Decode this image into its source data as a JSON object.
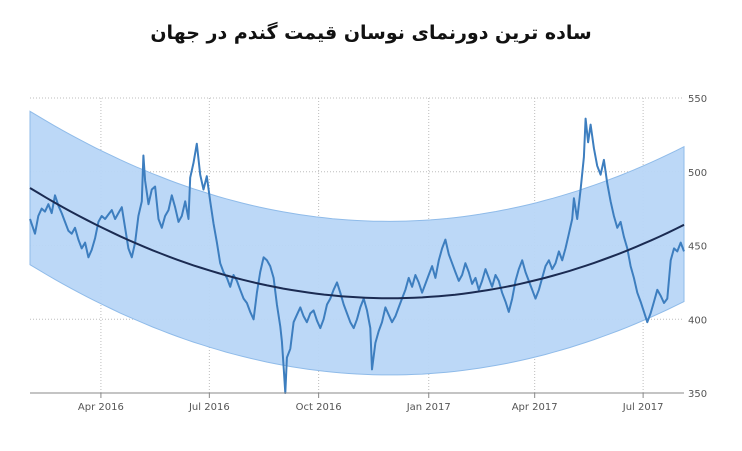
{
  "chart_data": {
    "type": "line",
    "title": "ساده ترین دورنمای نوسان قیمت گندم در جهان",
    "x_tick_labels": [
      "Apr 2016",
      "Jul 2016",
      "Oct 2016",
      "Jan 2017",
      "Apr 2017",
      "Jul 2017"
    ],
    "y_tick_labels": [
      "550",
      "500",
      "450",
      "400",
      "350"
    ],
    "ylim": [
      350,
      550
    ],
    "grid": true,
    "y_axis_side": "right",
    "series": [
      {
        "kind": "price",
        "color": "#3d7ebf",
        "points": [
          [
            0.0,
            468
          ],
          [
            0.6,
            458
          ],
          [
            1.0,
            470
          ],
          [
            1.4,
            475
          ],
          [
            1.8,
            473
          ],
          [
            2.2,
            478
          ],
          [
            2.6,
            472
          ],
          [
            3.0,
            484
          ],
          [
            3.4,
            477
          ],
          [
            3.8,
            472
          ],
          [
            4.2,
            466
          ],
          [
            4.6,
            460
          ],
          [
            5.0,
            458
          ],
          [
            5.4,
            462
          ],
          [
            5.8,
            454
          ],
          [
            6.2,
            448
          ],
          [
            6.6,
            452
          ],
          [
            7.0,
            442
          ],
          [
            7.4,
            447
          ],
          [
            7.8,
            455
          ],
          [
            8.2,
            466
          ],
          [
            8.6,
            470
          ],
          [
            9.0,
            468
          ],
          [
            9.4,
            471
          ],
          [
            9.8,
            474
          ],
          [
            10.2,
            468
          ],
          [
            10.6,
            472
          ],
          [
            11.0,
            476
          ],
          [
            11.4,
            462
          ],
          [
            11.8,
            448
          ],
          [
            12.2,
            442
          ],
          [
            12.6,
            452
          ],
          [
            13.0,
            470
          ],
          [
            13.4,
            480
          ],
          [
            13.6,
            511
          ],
          [
            13.8,
            494
          ],
          [
            14.2,
            478
          ],
          [
            14.6,
            488
          ],
          [
            15.0,
            490
          ],
          [
            15.4,
            468
          ],
          [
            15.8,
            462
          ],
          [
            16.2,
            470
          ],
          [
            16.6,
            474
          ],
          [
            17.0,
            484
          ],
          [
            17.4,
            476
          ],
          [
            17.8,
            466
          ],
          [
            18.2,
            470
          ],
          [
            18.6,
            480
          ],
          [
            19.0,
            468
          ],
          [
            19.2,
            496
          ],
          [
            19.6,
            506
          ],
          [
            20.0,
            519
          ],
          [
            20.4,
            498
          ],
          [
            20.8,
            488
          ],
          [
            21.2,
            497
          ],
          [
            21.6,
            480
          ],
          [
            22.0,
            465
          ],
          [
            22.4,
            452
          ],
          [
            22.8,
            438
          ],
          [
            23.2,
            432
          ],
          [
            23.6,
            428
          ],
          [
            24.0,
            422
          ],
          [
            24.4,
            430
          ],
          [
            24.8,
            426
          ],
          [
            25.2,
            420
          ],
          [
            25.6,
            414
          ],
          [
            26.0,
            411
          ],
          [
            26.4,
            405
          ],
          [
            26.8,
            400
          ],
          [
            27.2,
            418
          ],
          [
            27.6,
            432
          ],
          [
            28.0,
            442
          ],
          [
            28.4,
            440
          ],
          [
            28.8,
            436
          ],
          [
            29.2,
            428
          ],
          [
            29.6,
            410
          ],
          [
            30.0,
            395
          ],
          [
            30.2,
            385
          ],
          [
            30.4,
            368
          ],
          [
            30.6,
            350
          ],
          [
            30.8,
            374
          ],
          [
            31.2,
            380
          ],
          [
            31.6,
            398
          ],
          [
            32.0,
            403
          ],
          [
            32.4,
            408
          ],
          [
            32.8,
            402
          ],
          [
            33.2,
            398
          ],
          [
            33.6,
            404
          ],
          [
            34.0,
            406
          ],
          [
            34.4,
            399
          ],
          [
            34.8,
            394
          ],
          [
            35.2,
            400
          ],
          [
            35.6,
            410
          ],
          [
            36.0,
            414
          ],
          [
            36.4,
            420
          ],
          [
            36.8,
            425
          ],
          [
            37.2,
            418
          ],
          [
            37.6,
            410
          ],
          [
            38.0,
            404
          ],
          [
            38.4,
            398
          ],
          [
            38.8,
            394
          ],
          [
            39.2,
            400
          ],
          [
            39.6,
            408
          ],
          [
            40.0,
            414
          ],
          [
            40.4,
            406
          ],
          [
            40.8,
            394
          ],
          [
            41.0,
            366
          ],
          [
            41.4,
            384
          ],
          [
            41.8,
            392
          ],
          [
            42.2,
            398
          ],
          [
            42.6,
            408
          ],
          [
            43.0,
            403
          ],
          [
            43.4,
            398
          ],
          [
            43.8,
            402
          ],
          [
            44.2,
            408
          ],
          [
            44.6,
            414
          ],
          [
            45.0,
            420
          ],
          [
            45.4,
            428
          ],
          [
            45.8,
            422
          ],
          [
            46.2,
            430
          ],
          [
            46.6,
            425
          ],
          [
            47.0,
            418
          ],
          [
            47.4,
            424
          ],
          [
            47.8,
            430
          ],
          [
            48.2,
            436
          ],
          [
            48.6,
            428
          ],
          [
            49.0,
            440
          ],
          [
            49.4,
            448
          ],
          [
            49.8,
            454
          ],
          [
            50.2,
            444
          ],
          [
            50.6,
            438
          ],
          [
            51.0,
            432
          ],
          [
            51.4,
            426
          ],
          [
            51.8,
            430
          ],
          [
            52.2,
            438
          ],
          [
            52.6,
            432
          ],
          [
            53.0,
            424
          ],
          [
            53.4,
            428
          ],
          [
            53.8,
            420
          ],
          [
            54.2,
            426
          ],
          [
            54.6,
            434
          ],
          [
            55.0,
            428
          ],
          [
            55.4,
            422
          ],
          [
            55.8,
            430
          ],
          [
            56.2,
            426
          ],
          [
            56.6,
            418
          ],
          [
            57.0,
            412
          ],
          [
            57.4,
            405
          ],
          [
            57.8,
            414
          ],
          [
            58.2,
            426
          ],
          [
            58.6,
            434
          ],
          [
            59.0,
            440
          ],
          [
            59.4,
            432
          ],
          [
            59.8,
            426
          ],
          [
            60.2,
            420
          ],
          [
            60.6,
            414
          ],
          [
            61.0,
            420
          ],
          [
            61.4,
            428
          ],
          [
            61.8,
            436
          ],
          [
            62.2,
            440
          ],
          [
            62.6,
            434
          ],
          [
            63.0,
            438
          ],
          [
            63.4,
            446
          ],
          [
            63.8,
            440
          ],
          [
            64.2,
            448
          ],
          [
            64.6,
            458
          ],
          [
            65.0,
            468
          ],
          [
            65.2,
            482
          ],
          [
            65.6,
            468
          ],
          [
            66.0,
            488
          ],
          [
            66.4,
            510
          ],
          [
            66.6,
            536
          ],
          [
            66.9,
            520
          ],
          [
            67.2,
            532
          ],
          [
            67.6,
            516
          ],
          [
            68.0,
            504
          ],
          [
            68.4,
            498
          ],
          [
            68.8,
            508
          ],
          [
            69.2,
            492
          ],
          [
            69.6,
            480
          ],
          [
            70.0,
            470
          ],
          [
            70.4,
            462
          ],
          [
            70.8,
            466
          ],
          [
            71.2,
            456
          ],
          [
            71.6,
            448
          ],
          [
            72.0,
            436
          ],
          [
            72.4,
            428
          ],
          [
            72.8,
            418
          ],
          [
            73.2,
            412
          ],
          [
            73.6,
            405
          ],
          [
            74.0,
            398
          ],
          [
            74.4,
            404
          ],
          [
            74.8,
            412
          ],
          [
            75.2,
            420
          ],
          [
            75.6,
            416
          ],
          [
            76.0,
            411
          ],
          [
            76.4,
            414
          ],
          [
            76.8,
            440
          ],
          [
            77.2,
            448
          ],
          [
            77.6,
            446
          ],
          [
            78.0,
            452
          ],
          [
            78.4,
            446
          ]
        ]
      },
      {
        "kind": "regression-trend",
        "color": "#1b2b52",
        "points": [
          [
            0.0,
            489
          ],
          [
            33.5,
            418
          ],
          [
            78.4,
            464
          ]
        ]
      },
      {
        "kind": "channel-upper",
        "color": "#b4d3f6",
        "points": [
          [
            0.0,
            541
          ],
          [
            33.5,
            470
          ],
          [
            78.4,
            517
          ]
        ]
      },
      {
        "kind": "channel-lower",
        "color": "#b4d3f6",
        "points": [
          [
            0.0,
            437
          ],
          [
            33.5,
            366
          ],
          [
            78.4,
            412
          ]
        ]
      }
    ],
    "x_ticks": [
      {
        "label": "Apr 2016",
        "x": 8.5
      },
      {
        "label": "Jul 2016",
        "x": 21.5
      },
      {
        "label": "Oct 2016",
        "x": 34.6
      },
      {
        "label": "Jan 2017",
        "x": 47.8
      },
      {
        "label": "Apr 2017",
        "x": 60.5
      },
      {
        "label": "Jul 2017",
        "x": 73.5
      }
    ],
    "xlim": [
      0,
      78.4
    ]
  }
}
